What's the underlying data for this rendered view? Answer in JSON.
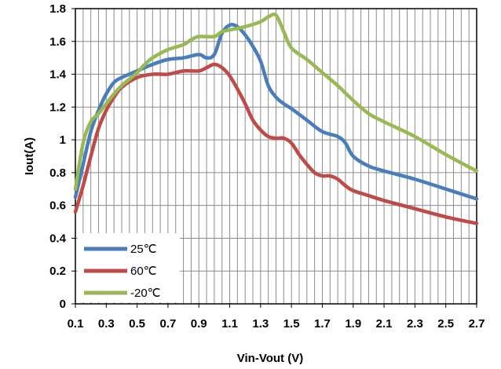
{
  "chart_data": {
    "type": "line",
    "xlabel": "Vin-Vout (V)",
    "ylabel": "Iout(A)",
    "xlim": [
      0.1,
      2.7
    ],
    "ylim": [
      0,
      1.8
    ],
    "x_ticks": [
      "0.1",
      "0.3",
      "0.5",
      "0.7",
      "0.9",
      "1.1",
      "1.3",
      "1.5",
      "1.7",
      "1.9",
      "2.1",
      "2.3",
      "2.5",
      "2.7"
    ],
    "y_ticks": [
      "0",
      "0.2",
      "0.4",
      "0.6",
      "0.8",
      "1",
      "1.2",
      "1.4",
      "1.6",
      "1.8"
    ],
    "grid": true,
    "legend": "bottom-left",
    "series": [
      {
        "name": "25℃",
        "color": "#4a7ebb",
        "points": [
          [
            0.1,
            0.65
          ],
          [
            0.15,
            0.85
          ],
          [
            0.2,
            1.05
          ],
          [
            0.25,
            1.18
          ],
          [
            0.3,
            1.28
          ],
          [
            0.35,
            1.35
          ],
          [
            0.4,
            1.38
          ],
          [
            0.5,
            1.42
          ],
          [
            0.6,
            1.46
          ],
          [
            0.7,
            1.49
          ],
          [
            0.8,
            1.5
          ],
          [
            0.9,
            1.52
          ],
          [
            0.95,
            1.5
          ],
          [
            1.0,
            1.52
          ],
          [
            1.05,
            1.65
          ],
          [
            1.1,
            1.7
          ],
          [
            1.15,
            1.69
          ],
          [
            1.2,
            1.64
          ],
          [
            1.25,
            1.57
          ],
          [
            1.3,
            1.48
          ],
          [
            1.35,
            1.33
          ],
          [
            1.4,
            1.26
          ],
          [
            1.45,
            1.22
          ],
          [
            1.5,
            1.19
          ],
          [
            1.6,
            1.12
          ],
          [
            1.7,
            1.05
          ],
          [
            1.8,
            1.02
          ],
          [
            1.85,
            0.98
          ],
          [
            1.9,
            0.9
          ],
          [
            2.0,
            0.84
          ],
          [
            2.1,
            0.81
          ],
          [
            2.3,
            0.76
          ],
          [
            2.5,
            0.7
          ],
          [
            2.7,
            0.64
          ]
        ]
      },
      {
        "name": "60℃",
        "color": "#be4b48",
        "points": [
          [
            0.1,
            0.56
          ],
          [
            0.15,
            0.72
          ],
          [
            0.2,
            0.9
          ],
          [
            0.25,
            1.07
          ],
          [
            0.3,
            1.18
          ],
          [
            0.35,
            1.26
          ],
          [
            0.4,
            1.32
          ],
          [
            0.5,
            1.38
          ],
          [
            0.6,
            1.4
          ],
          [
            0.7,
            1.4
          ],
          [
            0.8,
            1.42
          ],
          [
            0.9,
            1.42
          ],
          [
            0.95,
            1.44
          ],
          [
            1.0,
            1.46
          ],
          [
            1.05,
            1.44
          ],
          [
            1.1,
            1.39
          ],
          [
            1.15,
            1.31
          ],
          [
            1.2,
            1.22
          ],
          [
            1.25,
            1.12
          ],
          [
            1.3,
            1.06
          ],
          [
            1.35,
            1.02
          ],
          [
            1.4,
            1.01
          ],
          [
            1.45,
            1.01
          ],
          [
            1.5,
            0.98
          ],
          [
            1.55,
            0.91
          ],
          [
            1.6,
            0.85
          ],
          [
            1.65,
            0.8
          ],
          [
            1.7,
            0.78
          ],
          [
            1.75,
            0.78
          ],
          [
            1.8,
            0.76
          ],
          [
            1.85,
            0.72
          ],
          [
            1.9,
            0.69
          ],
          [
            2.0,
            0.66
          ],
          [
            2.1,
            0.63
          ],
          [
            2.3,
            0.58
          ],
          [
            2.5,
            0.53
          ],
          [
            2.7,
            0.49
          ]
        ]
      },
      {
        "name": "-20℃",
        "color": "#98b954",
        "points": [
          [
            0.1,
            0.7
          ],
          [
            0.15,
            0.98
          ],
          [
            0.2,
            1.11
          ],
          [
            0.25,
            1.16
          ],
          [
            0.3,
            1.22
          ],
          [
            0.35,
            1.28
          ],
          [
            0.4,
            1.33
          ],
          [
            0.45,
            1.37
          ],
          [
            0.5,
            1.41
          ],
          [
            0.55,
            1.46
          ],
          [
            0.6,
            1.5
          ],
          [
            0.7,
            1.55
          ],
          [
            0.8,
            1.58
          ],
          [
            0.85,
            1.61
          ],
          [
            0.9,
            1.63
          ],
          [
            1.0,
            1.63
          ],
          [
            1.05,
            1.66
          ],
          [
            1.1,
            1.67
          ],
          [
            1.2,
            1.69
          ],
          [
            1.3,
            1.72
          ],
          [
            1.35,
            1.75
          ],
          [
            1.4,
            1.76
          ],
          [
            1.45,
            1.66
          ],
          [
            1.5,
            1.56
          ],
          [
            1.6,
            1.49
          ],
          [
            1.7,
            1.41
          ],
          [
            1.8,
            1.33
          ],
          [
            1.9,
            1.24
          ],
          [
            2.0,
            1.16
          ],
          [
            2.1,
            1.11
          ],
          [
            2.3,
            1.02
          ],
          [
            2.5,
            0.91
          ],
          [
            2.7,
            0.81
          ]
        ]
      }
    ]
  }
}
